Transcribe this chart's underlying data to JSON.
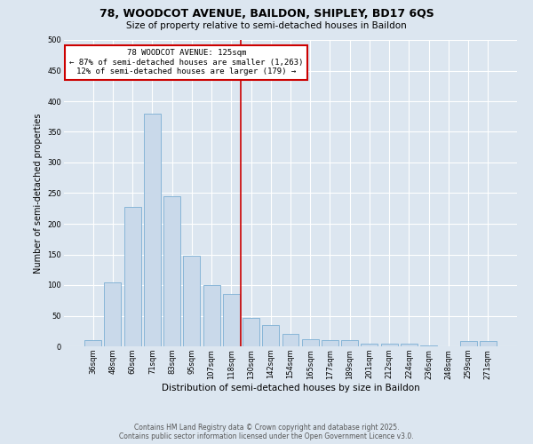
{
  "title": "78, WOODCOT AVENUE, BAILDON, SHIPLEY, BD17 6QS",
  "subtitle": "Size of property relative to semi-detached houses in Baildon",
  "xlabel": "Distribution of semi-detached houses by size in Baildon",
  "ylabel": "Number of semi-detached properties",
  "categories": [
    "36sqm",
    "48sqm",
    "60sqm",
    "71sqm",
    "83sqm",
    "95sqm",
    "107sqm",
    "118sqm",
    "130sqm",
    "142sqm",
    "154sqm",
    "165sqm",
    "177sqm",
    "189sqm",
    "201sqm",
    "212sqm",
    "224sqm",
    "236sqm",
    "248sqm",
    "259sqm",
    "271sqm"
  ],
  "values": [
    10,
    105,
    228,
    380,
    245,
    148,
    100,
    85,
    47,
    35,
    20,
    12,
    10,
    10,
    5,
    4,
    4,
    1,
    0,
    8,
    8
  ],
  "bar_color": "#c9d9ea",
  "bar_edge_color": "#7bafd4",
  "reference_line_x": 7.5,
  "annotation_title": "78 WOODCOT AVENUE: 125sqm",
  "annotation_line1": "← 87% of semi-detached houses are smaller (1,263)",
  "annotation_line2": "12% of semi-detached houses are larger (179) →",
  "annotation_box_color": "#cc0000",
  "vline_color": "#cc0000",
  "background_color": "#dce6f0",
  "plot_bg_color": "#dce6f0",
  "grid_color": "#ffffff",
  "footer_line1": "Contains HM Land Registry data © Crown copyright and database right 2025.",
  "footer_line2": "Contains public sector information licensed under the Open Government Licence v3.0.",
  "ylim": [
    0,
    500
  ],
  "yticks": [
    0,
    50,
    100,
    150,
    200,
    250,
    300,
    350,
    400,
    450,
    500
  ],
  "title_fontsize": 9,
  "subtitle_fontsize": 7.5,
  "xlabel_fontsize": 7.5,
  "ylabel_fontsize": 7,
  "tick_fontsize": 6,
  "annotation_fontsize": 6.5,
  "footer_fontsize": 5.5
}
